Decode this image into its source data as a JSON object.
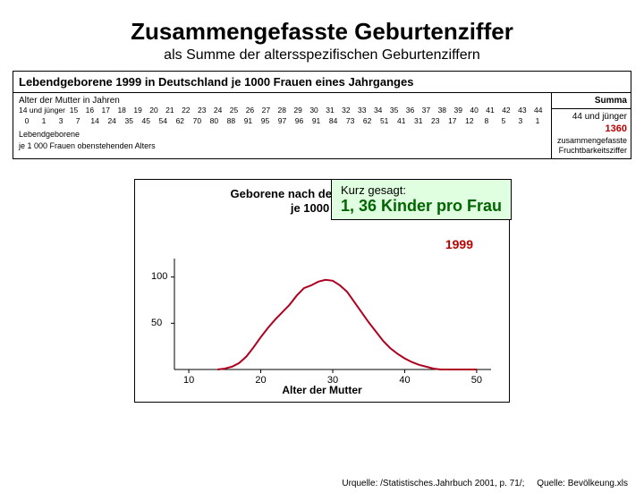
{
  "title": "Zusammengefasste Geburtenziffer",
  "subtitle": "als Summe der altersspezifischen Geburtenziffern",
  "table": {
    "title": "Lebendgeborene 1999 in Deutschland je 1000 Frauen eines Jahrganges",
    "row_label": "Alter der Mutter in Jahren",
    "ages": [
      "14 und jünger",
      "15",
      "16",
      "17",
      "18",
      "19",
      "20",
      "21",
      "22",
      "23",
      "24",
      "25",
      "26",
      "27",
      "28",
      "29",
      "30",
      "31",
      "32",
      "33",
      "34",
      "35",
      "36",
      "37",
      "38",
      "39",
      "40",
      "41",
      "42",
      "43",
      "44"
    ],
    "values": [
      "0",
      "1",
      "3",
      "7",
      "14",
      "24",
      "35",
      "45",
      "54",
      "62",
      "70",
      "80",
      "88",
      "91",
      "95",
      "97",
      "96",
      "91",
      "84",
      "73",
      "62",
      "51",
      "41",
      "31",
      "23",
      "17",
      "12",
      "8",
      "5",
      "3",
      "1"
    ],
    "footnote1": "Lebendgeborene",
    "footnote2": "je 1 000 Frauen obenstehenden Alters",
    "summa_label": "Summa",
    "sum_age": "44 und jünger",
    "sum_value": "1360",
    "sum_sub1": "zusammengefasste",
    "sum_sub2": "Fruchtbarkeitsziffer"
  },
  "callout": {
    "top": "Kurz gesagt:",
    "bot": "1, 36 Kinder pro Frau"
  },
  "chart": {
    "title_line1": "Geborene nach dem Alter der Mutter",
    "title_line2": "je 1000 Frauen",
    "year": "1999",
    "xlabel": "Alter der Mutter",
    "yticks": [
      50,
      100
    ],
    "ymax": 120,
    "xticks": [
      10,
      20,
      30,
      40,
      50
    ],
    "xmin": 8,
    "xmax": 52,
    "line_color": "#b00020",
    "line_width": 2,
    "bg": "#ffffff",
    "data_x": [
      14,
      15,
      16,
      17,
      18,
      19,
      20,
      21,
      22,
      23,
      24,
      25,
      26,
      27,
      28,
      29,
      30,
      31,
      32,
      33,
      34,
      35,
      36,
      37,
      38,
      39,
      40,
      41,
      42,
      43,
      44,
      45,
      46,
      47,
      48,
      49,
      50
    ],
    "data_y": [
      0,
      1,
      3,
      7,
      14,
      24,
      35,
      45,
      54,
      62,
      70,
      80,
      88,
      91,
      95,
      97,
      96,
      91,
      84,
      73,
      62,
      51,
      41,
      31,
      23,
      17,
      12,
      8,
      5,
      3,
      1,
      0,
      0,
      0,
      0,
      0,
      0
    ]
  },
  "source1": "Urquelle: /Statistisches.Jahrbuch 2001, p. 71/;",
  "source2": "Quelle: Bevölkeung.xls"
}
